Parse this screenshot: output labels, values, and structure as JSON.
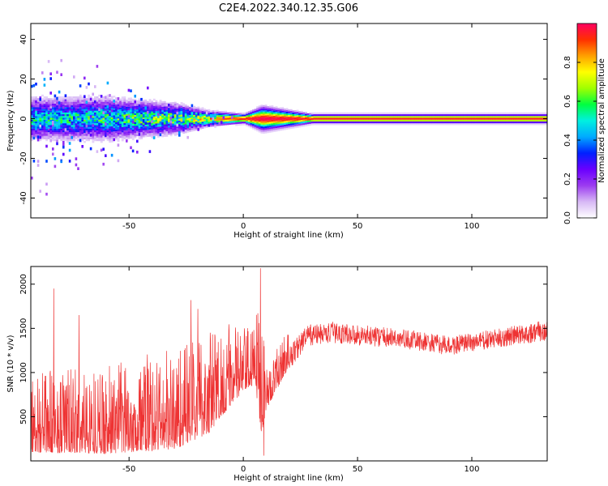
{
  "title": "C2E4.2022.340.12.35.G06",
  "chart_data": [
    {
      "type": "heatmap",
      "xlabel": "Height of straight line (km)",
      "ylabel": "Frequency (Hz)",
      "xlim": [
        -93,
        133
      ],
      "ylim": [
        -50,
        48
      ],
      "x_ticks": [
        -50,
        0,
        50,
        100
      ],
      "y_ticks": [
        -40,
        -20,
        0,
        20,
        40
      ],
      "grid": false,
      "colorbar": {
        "label": "Normalized spectral amplitude",
        "range": [
          0,
          1
        ],
        "ticks": [
          "0.0",
          "0.2",
          "0.4",
          "0.6",
          "0.8"
        ],
        "colormap": [
          "#ffffff",
          "#d7b8f5",
          "#9c3cf0",
          "#6a00ff",
          "#0020ff",
          "#00aaff",
          "#00f0e0",
          "#00ff40",
          "#a0ff00",
          "#ffff00",
          "#ffa000",
          "#ff3000",
          "#ff0060"
        ]
      },
      "profile": [
        {
          "x": -93,
          "half_width_hz": 7,
          "peak": 0.55,
          "scatter_hz": 45
        },
        {
          "x": -60,
          "half_width_hz": 7,
          "peak": 0.6,
          "scatter_hz": 30
        },
        {
          "x": -30,
          "half_width_hz": 5,
          "peak": 0.7,
          "scatter_hz": 15
        },
        {
          "x": -15,
          "half_width_hz": 2.5,
          "peak": 0.85,
          "scatter_hz": 6
        },
        {
          "x": 0,
          "half_width_hz": 1.5,
          "peak": 0.95,
          "scatter_hz": 2
        },
        {
          "x": 8,
          "half_width_hz": 4,
          "peak": 1.0,
          "scatter_hz": 3
        },
        {
          "x": 30,
          "half_width_hz": 1.5,
          "peak": 0.95,
          "scatter_hz": 0
        },
        {
          "x": 133,
          "half_width_hz": 1.5,
          "peak": 0.95,
          "scatter_hz": 0
        }
      ]
    },
    {
      "type": "line",
      "xlabel": "Height of straight line (km)",
      "ylabel": "SNR (10 * v/v)",
      "xlim": [
        -93,
        133
      ],
      "ylim": [
        0,
        2200
      ],
      "x_ticks": [
        -50,
        0,
        50,
        100
      ],
      "y_ticks": [
        500,
        1000,
        1500,
        2000
      ],
      "grid": false,
      "series": [
        {
          "color": "#ee3333",
          "envelope": [
            {
              "x": -93,
              "mean": 350,
              "noise": 300
            },
            {
              "x": -60,
              "mean": 350,
              "noise": 320
            },
            {
              "x": -30,
              "mean": 450,
              "noise": 380
            },
            {
              "x": -15,
              "mean": 650,
              "noise": 400
            },
            {
              "x": -5,
              "mean": 900,
              "noise": 300
            },
            {
              "x": 5,
              "mean": 1050,
              "noise": 200
            },
            {
              "x": 8,
              "mean": 900,
              "noise": 700
            },
            {
              "x": 10,
              "mean": 700,
              "noise": 150
            },
            {
              "x": 18,
              "mean": 1100,
              "noise": 150
            },
            {
              "x": 28,
              "mean": 1420,
              "noise": 120
            },
            {
              "x": 40,
              "mean": 1450,
              "noise": 120
            },
            {
              "x": 70,
              "mean": 1380,
              "noise": 110
            },
            {
              "x": 90,
              "mean": 1300,
              "noise": 110
            },
            {
              "x": 110,
              "mean": 1380,
              "noise": 110
            },
            {
              "x": 133,
              "mean": 1480,
              "noise": 120
            }
          ],
          "spikes": [
            {
              "x": -83,
              "y": 1950
            },
            {
              "x": -72,
              "y": 1650
            },
            {
              "x": -23,
              "y": 1820
            },
            {
              "x": -20,
              "y": 1720
            },
            {
              "x": 7.5,
              "y": 2180
            },
            {
              "x": 9,
              "y": 60
            }
          ]
        }
      ]
    }
  ]
}
